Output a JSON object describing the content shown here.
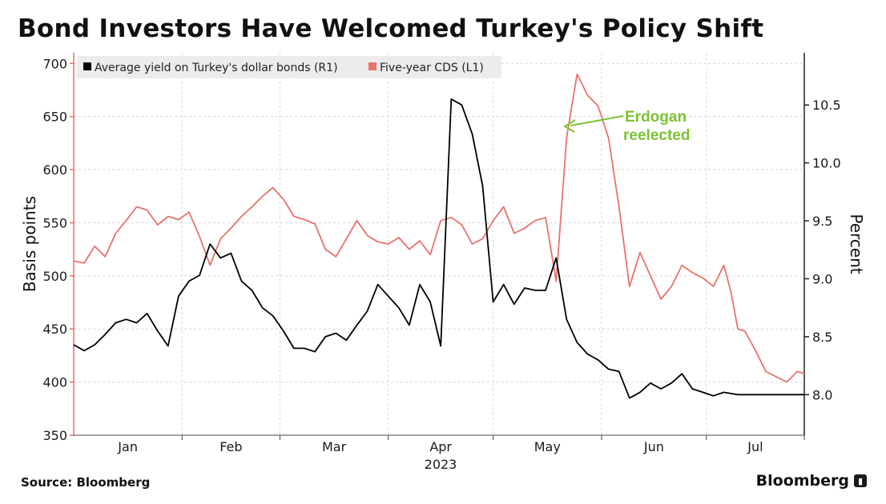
{
  "title": "Bond Investors Have Welcomed Turkey's Policy Shift",
  "source": "Source: Bloomberg",
  "brand": "Bloomberg",
  "colors": {
    "yield": "#000000",
    "cds": "#e8726c",
    "annotation": "#7cc233",
    "grid": "#d6d6d6"
  },
  "chart_data": {
    "type": "line",
    "title": "Bond Investors Have Welcomed Turkey's Policy Shift",
    "ylabel_left": "Basis points",
    "ylabel_right": "Percent",
    "xlabel": "2023",
    "ylim_left": [
      350,
      710
    ],
    "ylim_right": [
      7.65,
      10.95
    ],
    "left_ticks": [
      "350",
      "400",
      "450",
      "500",
      "550",
      "600",
      "650",
      "700"
    ],
    "right_ticks": [
      "8.0",
      "8.5",
      "9.0",
      "9.5",
      "10.0",
      "10.5"
    ],
    "months": [
      "Jan",
      "Feb",
      "Mar",
      "Apr",
      "May",
      "Jun",
      "Jul"
    ],
    "year_label": "2023",
    "legend": [
      {
        "name": "Average yield on Turkey's dollar bonds (R1)",
        "color": "#000000"
      },
      {
        "name": "Five-year CDS (L1)",
        "color": "#e8726c"
      }
    ],
    "annotation": {
      "line1": "Erdogan",
      "line2": "reelected"
    },
    "x_range": [
      0,
      209
    ],
    "series": [
      {
        "name": "Five-year CDS (L1)",
        "axis": "left",
        "x": [
          0,
          3,
          6,
          9,
          12,
          15,
          18,
          21,
          24,
          27,
          30,
          33,
          36,
          39,
          42,
          45,
          48,
          51,
          54,
          57,
          60,
          63,
          66,
          69,
          72,
          75,
          78,
          81,
          84,
          87,
          90,
          93,
          96,
          99,
          102,
          105,
          108,
          111,
          114,
          117,
          120,
          123,
          126,
          129,
          132,
          135,
          138,
          141,
          144,
          147,
          150,
          153,
          156,
          159,
          162,
          165,
          168,
          171,
          174,
          177,
          180,
          183,
          186,
          188,
          190,
          192,
          195,
          198,
          201,
          204,
          207,
          209
        ],
        "values": [
          514,
          512,
          528,
          518,
          540,
          552,
          565,
          562,
          548,
          556,
          553,
          560,
          537,
          510,
          535,
          545,
          556,
          565,
          575,
          583,
          572,
          556,
          553,
          549,
          525,
          518,
          535,
          552,
          538,
          532,
          530,
          536,
          525,
          533,
          520,
          552,
          555,
          548,
          530,
          535,
          552,
          565,
          540,
          545,
          552,
          555,
          495,
          630,
          690,
          670,
          660,
          630,
          565,
          490,
          522,
          500,
          478,
          490,
          510,
          503,
          498,
          490,
          510,
          485,
          450,
          448,
          430,
          410,
          405,
          400,
          410,
          408
        ]
      },
      {
        "name": "Average yield on Turkey's dollar bonds (R1)",
        "axis": "right",
        "x": [
          0,
          3,
          6,
          9,
          12,
          15,
          18,
          21,
          24,
          27,
          30,
          33,
          36,
          39,
          42,
          45,
          48,
          51,
          54,
          57,
          60,
          63,
          66,
          69,
          72,
          75,
          78,
          81,
          84,
          87,
          90,
          93,
          96,
          99,
          102,
          105,
          108,
          111,
          114,
          117,
          120,
          123,
          126,
          129,
          132,
          135,
          138,
          141,
          144,
          147,
          150,
          153,
          156,
          159,
          162,
          165,
          168,
          171,
          174,
          177,
          180,
          183,
          186,
          188,
          190,
          192,
          195,
          198,
          201,
          204,
          207,
          209
        ],
        "values": [
          8.43,
          8.38,
          8.43,
          8.52,
          8.62,
          8.65,
          8.62,
          8.7,
          8.55,
          8.42,
          8.85,
          8.98,
          9.03,
          9.3,
          9.18,
          9.22,
          8.98,
          8.9,
          8.75,
          8.68,
          8.55,
          8.4,
          8.4,
          8.37,
          8.5,
          8.53,
          8.47,
          8.6,
          8.72,
          8.95,
          8.85,
          8.75,
          8.6,
          8.95,
          8.8,
          8.42,
          10.55,
          10.5,
          10.25,
          9.8,
          8.8,
          8.95,
          8.78,
          8.92,
          8.9,
          8.9,
          9.18,
          8.65,
          8.45,
          8.35,
          8.3,
          8.22,
          8.2,
          7.97,
          8.02,
          8.1,
          8.05,
          8.1,
          8.18,
          8.05,
          8.02,
          7.99,
          8.02,
          8.01,
          8.0,
          8.0,
          8.0,
          8.0,
          8.0,
          8.0,
          8.0,
          8.0
        ]
      }
    ]
  }
}
